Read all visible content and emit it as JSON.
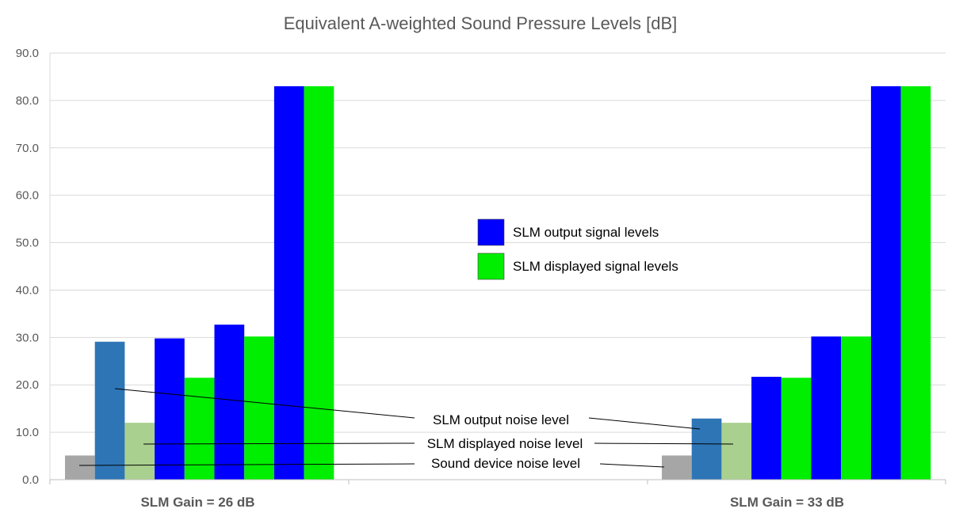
{
  "chart_data": {
    "type": "bar",
    "title": "Equivalent A-weighted Sound Pressure Levels [dB]",
    "xlabel": "",
    "ylabel": "",
    "ylim": [
      0,
      90
    ],
    "yticks": [
      "0.0",
      "10.0",
      "20.0",
      "30.0",
      "40.0",
      "50.0",
      "60.0",
      "70.0",
      "80.0",
      "90.0"
    ],
    "grid": true,
    "categories": [
      "SLM Gain = 26 dB",
      "SLM Gain = 33 dB"
    ],
    "series": [
      {
        "name": "Sound device noise level",
        "color": "#a6a6a6",
        "values": [
          5.1,
          5.1
        ]
      },
      {
        "name": "SLM output noise level",
        "color": "#2e75b6",
        "values": [
          29.1,
          12.9
        ]
      },
      {
        "name": "SLM displayed noise level",
        "color": "#a9d08e",
        "values": [
          12.0,
          12.0
        ]
      },
      {
        "name": "SLM output signal level 1",
        "color": "#0000ff",
        "values": [
          29.8,
          21.7
        ]
      },
      {
        "name": "SLM displayed signal level 1",
        "color": "#00ee00",
        "values": [
          21.5,
          21.5
        ]
      },
      {
        "name": "SLM output signal level 2",
        "color": "#0000ff",
        "values": [
          32.7,
          30.2
        ]
      },
      {
        "name": "SLM displayed signal level 2",
        "color": "#00ee00",
        "values": [
          30.2,
          30.2
        ]
      },
      {
        "name": "SLM output signal level 3",
        "color": "#0000ff",
        "values": [
          83.0,
          83.0
        ]
      },
      {
        "name": "SLM displayed signal level 3",
        "color": "#00ee00",
        "values": [
          83.0,
          83.0
        ]
      }
    ],
    "legend": [
      {
        "label": "SLM output signal levels",
        "color": "#0000ff"
      },
      {
        "label": "SLM displayed signal levels",
        "color": "#00ee00"
      }
    ],
    "legend_position": "center",
    "annotations": [
      {
        "label": "SLM output noise level",
        "series_index": 1
      },
      {
        "label": "SLM displayed noise level",
        "series_index": 2
      },
      {
        "label": "Sound device noise level",
        "series_index": 0
      }
    ]
  }
}
